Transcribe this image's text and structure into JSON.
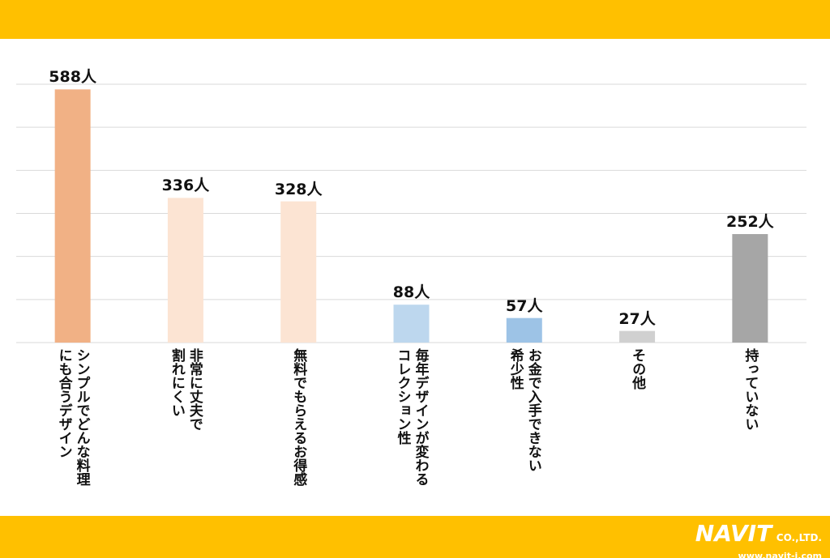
{
  "chart_data": {
    "type": "bar",
    "categories": [
      "シンプルでどんな料理\nにも合うデザイン",
      "非常に丈夫で\n割れにくい",
      "無料でもらえるお得感",
      "毎年デザインが変わる\nコレクション性",
      "お金で入手できない\n希少性",
      "その他",
      "持っていない"
    ],
    "values": [
      588,
      336,
      328,
      88,
      57,
      27,
      252
    ],
    "value_labels": [
      "588人",
      "336人",
      "328人",
      "88人",
      "57人",
      "27人",
      "252人"
    ],
    "colors": [
      "#f1b185",
      "#fce4d3",
      "#fce4d3",
      "#bdd7ee",
      "#9dc3e6",
      "#d0d0d0",
      "#a6a6a6"
    ],
    "ylim": [
      0,
      600
    ],
    "yticks": [
      0,
      100,
      200,
      300,
      400,
      500,
      600
    ],
    "grid": true
  },
  "footer": {
    "logo": "NAVIT",
    "company": "CO.,LTD.",
    "url": "www.navit-j.com"
  }
}
